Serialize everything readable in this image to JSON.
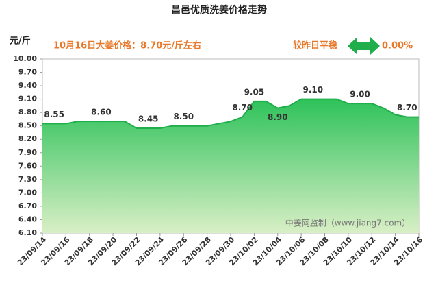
{
  "chart_data": {
    "type": "area",
    "title": "昌邑优质洗姜价格走势",
    "y_unit": "元/斤",
    "annotation": "10月16日大姜价格：8.70元/斤左右",
    "change_text": "较昨日平稳",
    "change_value": "0.00%",
    "watermark": "中姜网监制（www.jiang7.com）",
    "categories": [
      "23/09/14",
      null,
      "23/09/16",
      null,
      "23/09/18",
      null,
      "23/09/20",
      null,
      "23/09/22",
      null,
      "23/09/24",
      null,
      "23/09/26",
      null,
      "23/09/28",
      null,
      "23/09/30",
      null,
      "23/10/02",
      null,
      "23/10/04",
      null,
      "23/10/06",
      null,
      "23/10/08",
      null,
      "23/10/10",
      null,
      "23/10/12",
      null,
      "23/10/14",
      null,
      "23/10/16"
    ],
    "values": [
      8.55,
      8.55,
      8.55,
      8.6,
      8.6,
      8.6,
      8.6,
      8.6,
      8.45,
      8.45,
      8.45,
      8.5,
      8.5,
      8.5,
      8.5,
      8.55,
      8.6,
      8.7,
      9.05,
      9.05,
      8.9,
      8.95,
      9.1,
      9.1,
      9.1,
      9.1,
      9.0,
      9.0,
      9.0,
      8.9,
      8.75,
      8.7,
      8.7
    ],
    "value_labels": [
      null,
      "8.55",
      null,
      null,
      null,
      "8.60",
      null,
      null,
      null,
      "8.45",
      null,
      null,
      "8.50",
      null,
      null,
      null,
      null,
      "8.70",
      "9.05",
      null,
      "8.90",
      null,
      null,
      "9.10",
      null,
      null,
      null,
      "9.00",
      null,
      null,
      null,
      "8.70",
      null
    ],
    "color": "#1fae4a",
    "grid": false,
    "ylim": [
      6.1,
      10.0
    ],
    "yticks": [
      {
        "value": 6.1,
        "label": "6.10"
      },
      {
        "value": 6.4,
        "label": "6.40"
      },
      {
        "value": 6.7,
        "label": "6.70"
      },
      {
        "value": 7.0,
        "label": "7.00"
      },
      {
        "value": 7.3,
        "label": "7.30"
      },
      {
        "value": 7.6,
        "label": "7.60"
      },
      {
        "value": 7.9,
        "label": "7.90"
      },
      {
        "value": 8.2,
        "label": "8.20"
      },
      {
        "value": 8.5,
        "label": "8.50"
      },
      {
        "value": 8.8,
        "label": "8.80"
      },
      {
        "value": 9.1,
        "label": "9.10"
      },
      {
        "value": 9.4,
        "label": "9.40"
      },
      {
        "value": 9.7,
        "label": "9.70"
      },
      {
        "value": 10.0,
        "label": "10.00"
      }
    ]
  }
}
